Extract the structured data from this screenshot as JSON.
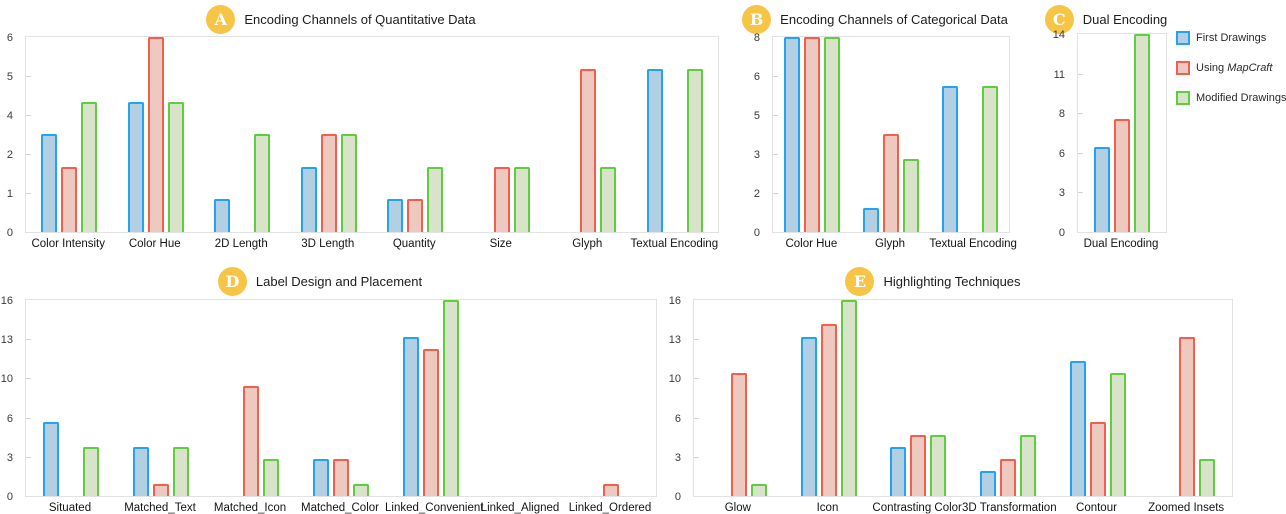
{
  "colors": {
    "badge": "#f6c545",
    "plot_border": "#e2e2e2",
    "series": [
      {
        "name": "First Drawings",
        "fill": "#b2cfe4",
        "stroke": "#23a3f2"
      },
      {
        "name": "Using MapCraft",
        "fill": "#eec9c0",
        "stroke": "#f2604d"
      },
      {
        "name": "Modified Drawings",
        "fill": "#d9e3c9",
        "stroke": "#5fce3e"
      }
    ]
  },
  "legend": {
    "items": [
      {
        "label": "First Drawings"
      },
      {
        "label_prefix": "Using ",
        "label_italic": "MapCraft"
      },
      {
        "label": "Modified Drawings"
      }
    ]
  },
  "chart_data": [
    {
      "type": "bar",
      "badge": "A",
      "title": "Encoding Channels of Quantitative Data",
      "categories": [
        "Color Intensity",
        "Color Hue",
        "2D Length",
        "3D Length",
        "Quantity",
        "Size",
        "Glyph",
        "Textual Encoding"
      ],
      "series": [
        {
          "name": "First Drawings",
          "values": [
            3,
            4,
            1,
            2,
            1,
            0,
            0,
            5
          ]
        },
        {
          "name": "Using MapCraft",
          "values": [
            2,
            6,
            0,
            3,
            1,
            2,
            5,
            0
          ]
        },
        {
          "name": "Modified Drawings",
          "values": [
            4,
            4,
            3,
            3,
            2,
            2,
            2,
            5
          ]
        }
      ],
      "ylim": [
        0,
        6
      ],
      "ytick_labels_top_to_bottom": [
        "6",
        "5",
        "4",
        "2",
        "1",
        "0"
      ],
      "grid": false,
      "legend_position": "none"
    },
    {
      "type": "bar",
      "badge": "B",
      "title": "Encoding Channels of Categorical Data",
      "categories": [
        "Color Hue",
        "Glyph",
        "Textual Encoding"
      ],
      "series": [
        {
          "name": "First Drawings",
          "values": [
            8,
            1,
            6
          ]
        },
        {
          "name": "Using MapCraft",
          "values": [
            8,
            4,
            0
          ]
        },
        {
          "name": "Modified Drawings",
          "values": [
            8,
            3,
            6
          ]
        }
      ],
      "ylim": [
        0,
        8
      ],
      "ytick_labels_top_to_bottom": [
        "8",
        "6",
        "5",
        "3",
        "2",
        "0"
      ],
      "grid": false,
      "legend_position": "none"
    },
    {
      "type": "bar",
      "badge": "C",
      "title": "Dual Encoding",
      "categories": [
        "Dual Encoding"
      ],
      "series": [
        {
          "name": "First Drawings",
          "values": [
            6
          ]
        },
        {
          "name": "Using MapCraft",
          "values": [
            8
          ]
        },
        {
          "name": "Modified Drawings",
          "values": [
            14
          ]
        }
      ],
      "ylim": [
        0,
        14
      ],
      "ytick_labels_top_to_bottom": [
        "14",
        "11",
        "8",
        "6",
        "3",
        "0"
      ],
      "grid": false,
      "legend_position": "right"
    },
    {
      "type": "bar",
      "badge": "D",
      "title": "Label Design and Placement",
      "categories": [
        "Situated",
        "Matched_Text",
        "Matched_Icon",
        "Matched_Color",
        "Linked_Convenient",
        "Linked_Aligned",
        "Linked_Ordered"
      ],
      "series": [
        {
          "name": "First Drawings",
          "values": [
            6,
            4,
            0,
            3,
            13,
            0,
            0
          ]
        },
        {
          "name": "Using MapCraft",
          "values": [
            0,
            1,
            9,
            3,
            12,
            0,
            1
          ]
        },
        {
          "name": "Modified Drawings",
          "values": [
            4,
            4,
            3,
            1,
            16,
            0,
            0
          ]
        }
      ],
      "ylim": [
        0,
        16
      ],
      "ytick_labels_top_to_bottom": [
        "16",
        "13",
        "10",
        "6",
        "3",
        "0"
      ],
      "grid": false,
      "legend_position": "none"
    },
    {
      "type": "bar",
      "badge": "E",
      "title": "Highlighting Techniques",
      "categories": [
        "Glow",
        "Icon",
        "Contrasting Color",
        "3D Transformation",
        "Contour",
        "Zoomed Insets"
      ],
      "series": [
        {
          "name": "First Drawings",
          "values": [
            0,
            13,
            4,
            2,
            11,
            0
          ]
        },
        {
          "name": "Using MapCraft",
          "values": [
            10,
            14,
            5,
            3,
            6,
            13
          ]
        },
        {
          "name": "Modified Drawings",
          "values": [
            1,
            16,
            5,
            5,
            10,
            3
          ]
        }
      ],
      "ylim": [
        0,
        16
      ],
      "ytick_labels_top_to_bottom": [
        "16",
        "13",
        "10",
        "6",
        "3",
        "0"
      ],
      "grid": false,
      "legend_position": "none"
    }
  ]
}
